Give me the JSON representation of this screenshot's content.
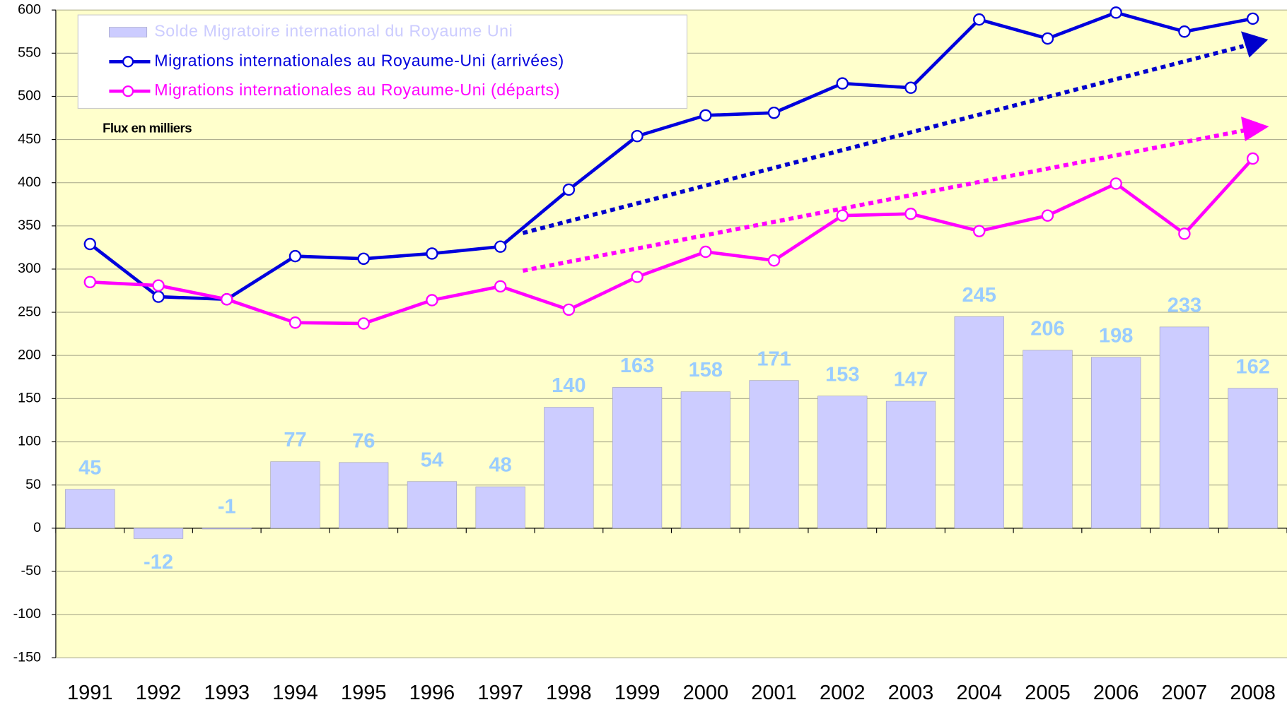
{
  "chart_data": {
    "type": "bar-line",
    "annotation": "Flux en milliers",
    "categories": [
      "1991",
      "1992",
      "1993",
      "1994",
      "1995",
      "1996",
      "1997",
      "1998",
      "1999",
      "2000",
      "2001",
      "2002",
      "2003",
      "2004",
      "2005",
      "2006",
      "2007",
      "2008"
    ],
    "series": [
      {
        "name": "Solde Migratoire international du Royaume Uni",
        "type": "bar",
        "color": "#ccccff",
        "values": [
          45,
          -12,
          -1,
          77,
          76,
          54,
          48,
          140,
          163,
          158,
          171,
          153,
          147,
          245,
          206,
          198,
          233,
          162
        ]
      },
      {
        "name": "Migrations internationales au Royaume-Uni (arrivées)",
        "type": "line",
        "color": "#0000dd",
        "values": [
          329,
          268,
          265,
          315,
          312,
          318,
          326,
          392,
          454,
          478,
          481,
          515,
          510,
          589,
          567,
          597,
          575,
          590
        ]
      },
      {
        "name": "Migrations internationales au Royaume-Uni (départs)",
        "type": "line",
        "color": "#ff00ff",
        "values": [
          285,
          281,
          265,
          238,
          237,
          264,
          280,
          253,
          291,
          320,
          310,
          362,
          364,
          344,
          362,
          399,
          341,
          428
        ]
      }
    ],
    "ylim": [
      -150,
      600
    ],
    "yticks": [
      -150,
      -100,
      -50,
      0,
      50,
      100,
      150,
      200,
      250,
      300,
      350,
      400,
      450,
      500,
      550,
      600
    ],
    "grid": true,
    "legend": "top-left"
  }
}
